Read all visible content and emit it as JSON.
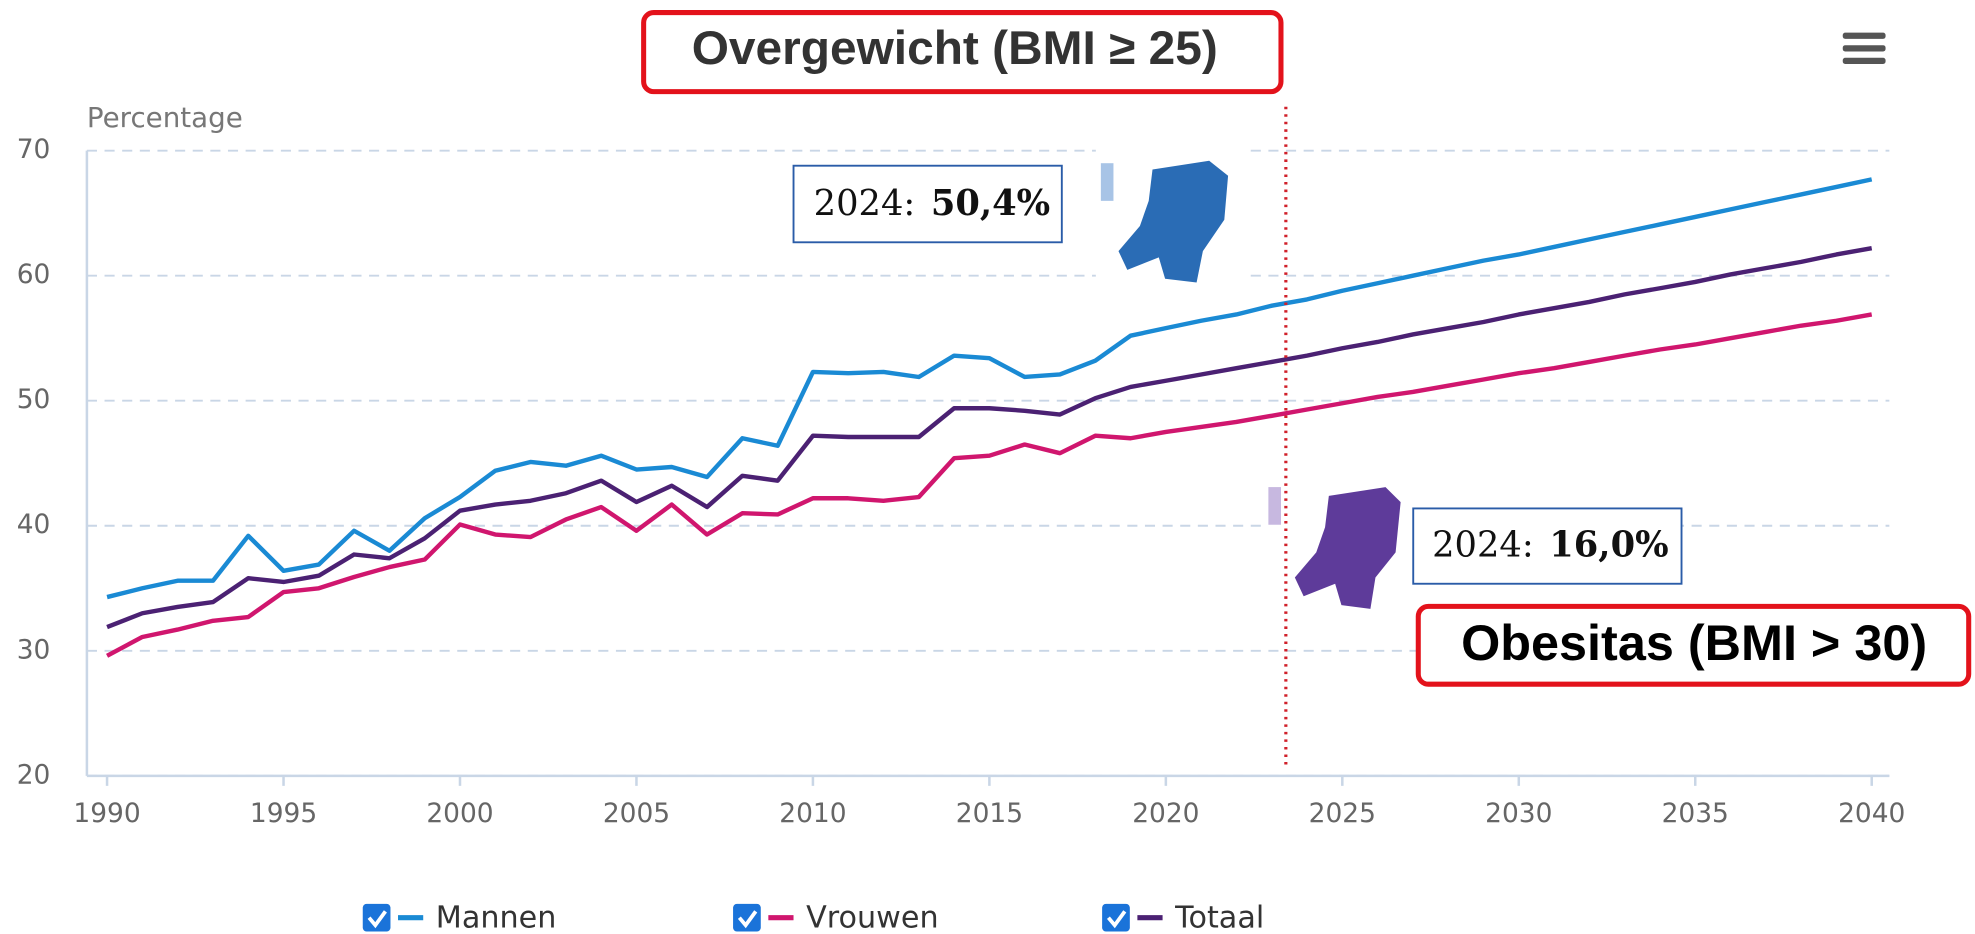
{
  "chart_data": {
    "type": "line",
    "title": "Overgewicht (BMI ≥ 25)",
    "y_label": "Percentage",
    "x": [
      1990,
      1991,
      1992,
      1993,
      1994,
      1995,
      1996,
      1997,
      1998,
      1999,
      2000,
      2001,
      2002,
      2003,
      2004,
      2005,
      2006,
      2007,
      2008,
      2009,
      2010,
      2011,
      2012,
      2013,
      2014,
      2015,
      2016,
      2017,
      2018,
      2019,
      2020,
      2021,
      2022,
      2023,
      2024,
      2025,
      2026,
      2027,
      2028,
      2029,
      2030,
      2031,
      2032,
      2033,
      2034,
      2035,
      2036,
      2037,
      2038,
      2039,
      2040
    ],
    "series": [
      {
        "name": "Mannen",
        "color": "#1a8ad4",
        "values": [
          34.3,
          35.0,
          35.6,
          35.6,
          39.2,
          36.4,
          36.9,
          39.6,
          38.0,
          40.6,
          42.3,
          44.4,
          45.1,
          44.8,
          45.6,
          44.5,
          44.7,
          43.9,
          47.0,
          46.4,
          52.3,
          52.2,
          52.3,
          51.9,
          53.6,
          53.4,
          51.9,
          52.1,
          53.2,
          55.2,
          55.8,
          56.4,
          56.9,
          57.6,
          58.1,
          58.8,
          59.4,
          60.0,
          60.6,
          61.2,
          61.7,
          62.3,
          62.9,
          63.5,
          64.1,
          64.7,
          65.3,
          65.9,
          66.5,
          67.1,
          67.7
        ]
      },
      {
        "name": "Vrouwen",
        "color": "#d0166e",
        "values": [
          29.6,
          31.1,
          31.7,
          32.4,
          32.7,
          34.7,
          35.0,
          35.9,
          36.7,
          37.3,
          40.1,
          39.3,
          39.1,
          40.5,
          41.5,
          39.6,
          41.7,
          39.3,
          41.0,
          40.9,
          42.2,
          42.2,
          42.0,
          42.3,
          45.4,
          45.6,
          46.5,
          45.8,
          47.2,
          47.0,
          47.5,
          47.9,
          48.3,
          48.8,
          49.3,
          49.8,
          50.3,
          50.7,
          51.2,
          51.7,
          52.2,
          52.6,
          53.1,
          53.6,
          54.1,
          54.5,
          55.0,
          55.5,
          56.0,
          56.4,
          56.9
        ]
      },
      {
        "name": "Totaal",
        "color": "#4b2173",
        "values": [
          31.9,
          33.0,
          33.5,
          33.9,
          35.8,
          35.5,
          36.0,
          37.7,
          37.4,
          39.0,
          41.2,
          41.7,
          42.0,
          42.6,
          43.6,
          41.9,
          43.2,
          41.5,
          44.0,
          43.6,
          47.2,
          47.1,
          47.1,
          47.1,
          49.4,
          49.4,
          49.2,
          48.9,
          50.2,
          51.1,
          51.6,
          52.1,
          52.6,
          53.1,
          53.6,
          54.2,
          54.7,
          55.3,
          55.8,
          56.3,
          56.9,
          57.4,
          57.9,
          58.5,
          59.0,
          59.5,
          60.1,
          60.6,
          61.1,
          61.7,
          62.2
        ]
      }
    ],
    "xlim": [
      1990,
      2040
    ],
    "xticks": [
      1990,
      1995,
      2000,
      2005,
      2010,
      2015,
      2020,
      2025,
      2030,
      2035,
      2040
    ],
    "ylim": [
      20,
      70
    ],
    "yticks": [
      20,
      30,
      40,
      50,
      60,
      70
    ],
    "grid": true,
    "vline_x": 2023.4,
    "annotations": [
      {
        "prefix": "2024:",
        "value": "50,4%"
      },
      {
        "prefix": "2024:",
        "value": "16,0%"
      }
    ],
    "obesity_label": "Obesitas (BMI > 30)"
  }
}
